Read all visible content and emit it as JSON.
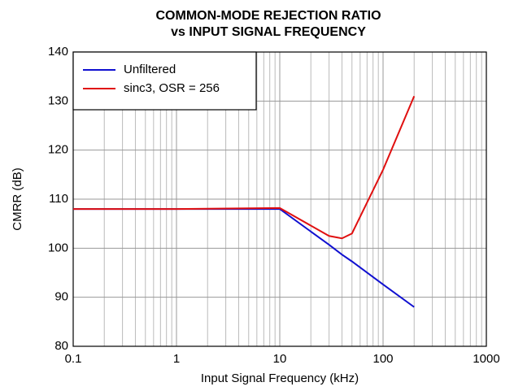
{
  "chart_data": {
    "type": "line",
    "title": [
      "COMMON-MODE REJECTION RATIO",
      "vs INPUT SIGNAL FREQUENCY"
    ],
    "xlabel": "Input Signal Frequency (kHz)",
    "ylabel": "CMRR (dB)",
    "x": [
      0.1,
      1,
      10,
      30,
      40,
      50,
      100,
      200
    ],
    "series": [
      {
        "name": "Unfiltered",
        "color": "#1010d0",
        "values": [
          108,
          108,
          108,
          100.7,
          98.7,
          97.3,
          92.6,
          88
        ]
      },
      {
        "name": "sinc3, OSR = 256",
        "color": "#e01010",
        "values": [
          108,
          108,
          108.2,
          102.5,
          102,
          103,
          116,
          131
        ]
      }
    ],
    "xlim": [
      0.1,
      1000
    ],
    "xticks": [
      0.1,
      1,
      10,
      100,
      1000
    ],
    "xscale": "log",
    "ylim": [
      80,
      140
    ],
    "yticks": [
      80,
      90,
      100,
      110,
      120,
      130,
      140
    ],
    "grid": true,
    "legend": "upper left"
  }
}
